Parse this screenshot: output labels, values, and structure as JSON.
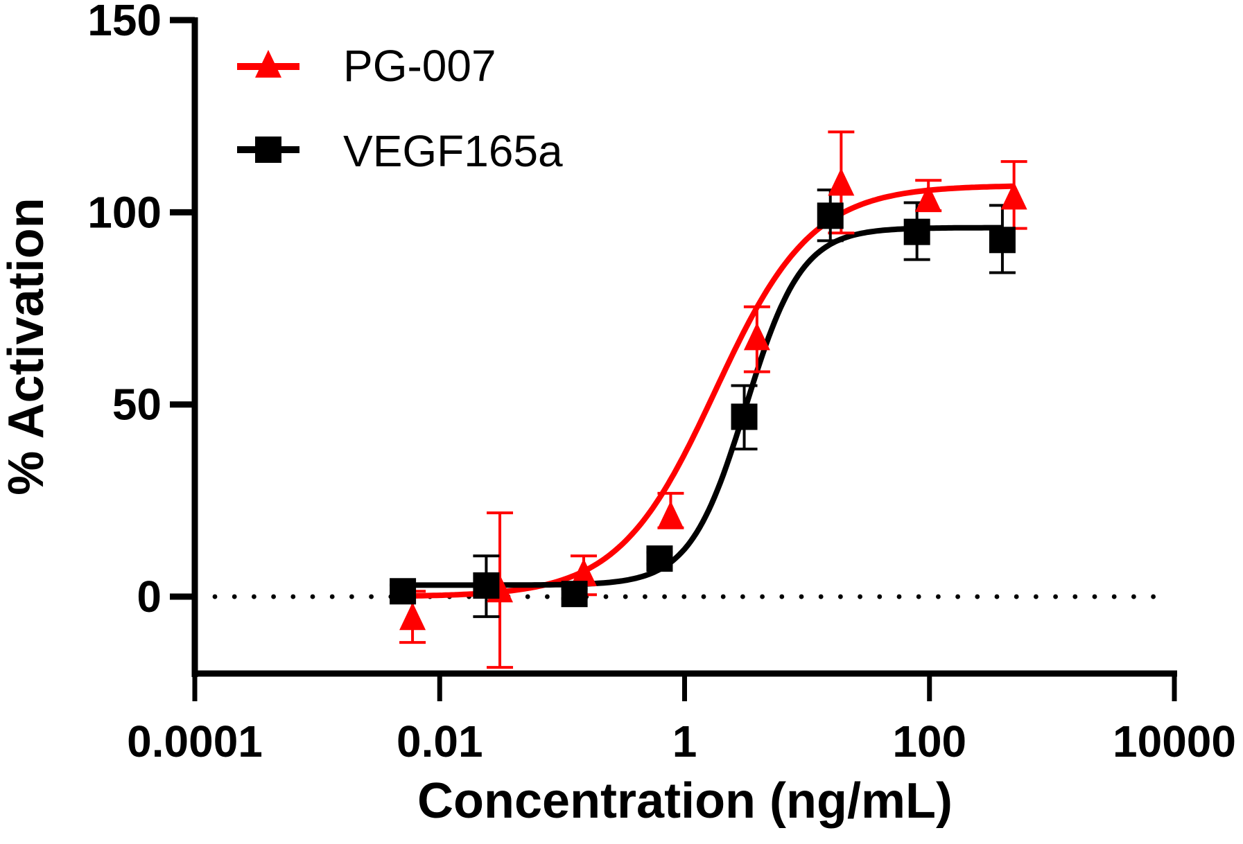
{
  "chart_data": {
    "type": "scatter",
    "title": "",
    "xlabel": "Concentration (ng/mL)",
    "ylabel": "% Activation",
    "xscale": "log",
    "xlim": [
      0.0001,
      10000
    ],
    "ylim": [
      -20,
      150
    ],
    "xticks": [
      0.0001,
      0.01,
      1,
      100,
      10000
    ],
    "xtick_labels": [
      "0.0001",
      "0.01",
      "1",
      "100",
      "10000"
    ],
    "yticks": [
      0,
      50,
      100,
      150
    ],
    "ytick_labels": [
      "0",
      "50",
      "100",
      "150"
    ],
    "grid": false,
    "reference_line": {
      "y": 0,
      "style": "dotted",
      "color": "#000000"
    },
    "legend": {
      "placement": "top-left",
      "entries": [
        "PG-007",
        "VEGF165a"
      ]
    },
    "series": [
      {
        "name": "PG-007",
        "color": "#ff0000",
        "marker": "triangle",
        "x": [
          0.006,
          0.031,
          0.15,
          0.77,
          3.9,
          19,
          98,
          490
        ],
        "y": [
          -5.8,
          1.4,
          5.6,
          20.6,
          67,
          107.2,
          103,
          103.6
        ],
        "err_low": [
          -11.9,
          -18.4,
          0.5,
          17.9,
          58.5,
          94.6,
          100.4,
          95.8
        ],
        "err_high": [
          1.4,
          21.8,
          10.6,
          26.9,
          75.4,
          120.9,
          108.3,
          113.2
        ],
        "fit": {
          "bottom": 0,
          "top": 107,
          "logEC50": 0.25,
          "hill": 1.1
        }
      },
      {
        "name": "VEGF165a",
        "color": "#000000",
        "marker": "square",
        "x": [
          0.005,
          0.024,
          0.126,
          0.625,
          3.07,
          15.5,
          79,
          394
        ],
        "y": [
          1.4,
          2.9,
          0.7,
          9.9,
          46.8,
          99.1,
          94.9,
          92.8
        ],
        "err_low": [
          0.0,
          -5.2,
          -0.5,
          8.5,
          38.4,
          92.6,
          87.7,
          84.3
        ],
        "err_high": [
          3.0,
          10.6,
          2.0,
          11.5,
          54.9,
          105.8,
          102.5,
          101.8
        ],
        "fit": {
          "bottom": 3,
          "top": 96,
          "logEC50": 0.5,
          "hill": 1.9
        }
      }
    ]
  }
}
